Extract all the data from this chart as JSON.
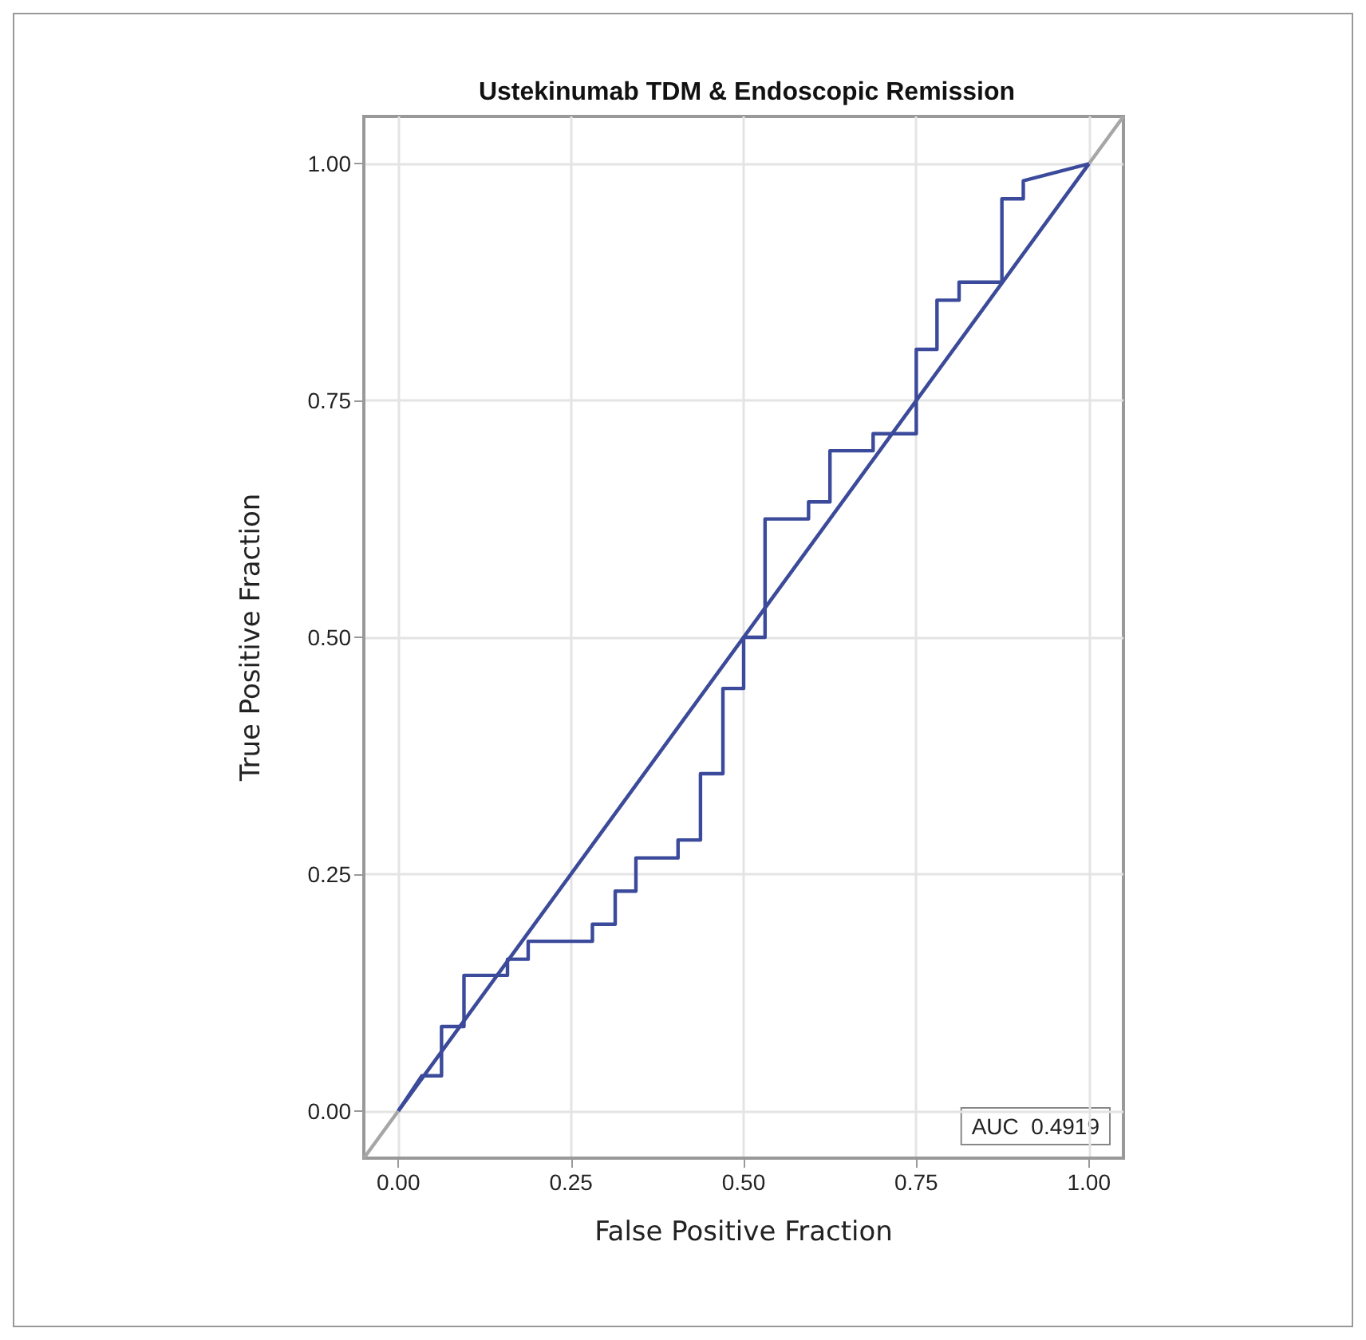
{
  "chart_data": {
    "type": "line",
    "title": "Ustekinumab TDM & Endoscopic Remission",
    "xlabel": "False Positive Fraction",
    "ylabel": "True Positive Fraction",
    "xlim": [
      -0.05,
      1.05
    ],
    "ylim": [
      -0.05,
      1.05
    ],
    "xticks": [
      {
        "value": 0,
        "label": "0.00"
      },
      {
        "value": 0.25,
        "label": "0.25"
      },
      {
        "value": 0.5,
        "label": "0.50"
      },
      {
        "value": 0.75,
        "label": "0.75"
      },
      {
        "value": 1,
        "label": "1.00"
      }
    ],
    "yticks": [
      {
        "value": 0,
        "label": "0.00"
      },
      {
        "value": 0.25,
        "label": "0.25"
      },
      {
        "value": 0.5,
        "label": "0.50"
      },
      {
        "value": 0.75,
        "label": "0.75"
      },
      {
        "value": 1,
        "label": "1.00"
      }
    ],
    "grid": true,
    "marker": "none",
    "line_style": "solid",
    "annotations": [
      "AUC  0.4919"
    ],
    "series": [
      {
        "color": "#a6a6a6",
        "x": [
          -0.05,
          1.05
        ],
        "values": [
          -0.05,
          1.05
        ]
      },
      {
        "color": "#3b4a9b",
        "x": [
          0,
          1
        ],
        "values": [
          0,
          1
        ]
      },
      {
        "color": "#3b4a9b",
        "x": [
          0,
          0.034,
          0.0625,
          0.0625,
          0.095,
          0.095,
          0.158,
          0.158,
          0.188,
          0.188,
          0.281,
          0.281,
          0.314,
          0.314,
          0.344,
          0.344,
          0.405,
          0.405,
          0.4375,
          0.4375,
          0.47,
          0.47,
          0.5,
          0.5,
          0.531,
          0.531,
          0.594,
          0.594,
          0.625,
          0.625,
          0.6875,
          0.6875,
          0.75,
          0.75,
          0.78,
          0.78,
          0.812,
          0.812,
          0.874,
          0.874,
          0.905,
          0.905,
          1
        ],
        "values": [
          0,
          0.037,
          0.037,
          0.089,
          0.089,
          0.143,
          0.143,
          0.16,
          0.16,
          0.179,
          0.179,
          0.197,
          0.197,
          0.232,
          0.232,
          0.267,
          0.267,
          0.286,
          0.286,
          0.356,
          0.356,
          0.446,
          0.446,
          0.5,
          0.5,
          0.625,
          0.625,
          0.643,
          0.643,
          0.697,
          0.697,
          0.715,
          0.715,
          0.804,
          0.804,
          0.856,
          0.856,
          0.875,
          0.875,
          0.963,
          0.963,
          0.982,
          1
        ]
      }
    ]
  }
}
